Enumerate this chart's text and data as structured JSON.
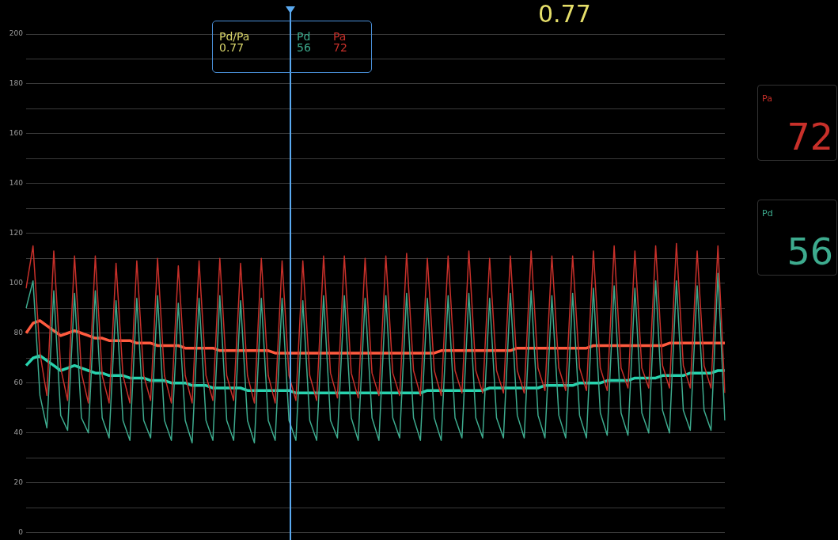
{
  "chart_data": {
    "type": "line",
    "categories": [
      null,
      null,
      null,
      null,
      null,
      null,
      null,
      null,
      null,
      null,
      null,
      null,
      null,
      null,
      null,
      null,
      null,
      null,
      null,
      null,
      null,
      null,
      null,
      null,
      null,
      null,
      null,
      null,
      null,
      null,
      null,
      null,
      null,
      null,
      null,
      null,
      null,
      null,
      null,
      null,
      null,
      null,
      null,
      null,
      null,
      null,
      null,
      null,
      null,
      null,
      null,
      null,
      null,
      null,
      null,
      null,
      null,
      null,
      null,
      null,
      null,
      null,
      null,
      null,
      null,
      null,
      null,
      null,
      null,
      null,
      null,
      null,
      null,
      null,
      null,
      null,
      null,
      null,
      null,
      null,
      null,
      null,
      null,
      null,
      null,
      null,
      null,
      null,
      null,
      null,
      null,
      null,
      null,
      null,
      null,
      null,
      null,
      null,
      null,
      null,
      null,
      null
    ],
    "series": [
      {
        "color": "#c8302a",
        "values": [
          98,
          115,
          72,
          55,
          113,
          66,
          53,
          111,
          64,
          52,
          111,
          63,
          52,
          108,
          63,
          52,
          109,
          63,
          53,
          110,
          63,
          52,
          107,
          63,
          52,
          109,
          63,
          53,
          110,
          63,
          53,
          108,
          63,
          52,
          110,
          63,
          52,
          109,
          63,
          53,
          109,
          63,
          53,
          111,
          64,
          54,
          111,
          64,
          54,
          110,
          64,
          55,
          111,
          64,
          55,
          112,
          65,
          55,
          110,
          65,
          55,
          111,
          65,
          56,
          113,
          65,
          56,
          110,
          65,
          56,
          111,
          65,
          56,
          113,
          66,
          57,
          111,
          66,
          57,
          111,
          66,
          57,
          113,
          66,
          57,
          115,
          66,
          58,
          113,
          66,
          58,
          115,
          67,
          58,
          116,
          67,
          58,
          113,
          67,
          58,
          115,
          56
        ]
      },
      {
        "color": "#3dab8e",
        "values": [
          90,
          101,
          55,
          42,
          97,
          47,
          41,
          96,
          46,
          40,
          97,
          46,
          38,
          93,
          45,
          37,
          94,
          45,
          38,
          95,
          45,
          37,
          92,
          45,
          36,
          94,
          45,
          37,
          95,
          45,
          37,
          93,
          45,
          36,
          94,
          45,
          37,
          94,
          45,
          37,
          93,
          45,
          37,
          95,
          45,
          38,
          95,
          46,
          37,
          94,
          46,
          37,
          95,
          46,
          38,
          96,
          46,
          37,
          94,
          46,
          37,
          95,
          46,
          38,
          96,
          46,
          38,
          94,
          46,
          38,
          96,
          47,
          38,
          97,
          47,
          38,
          95,
          47,
          38,
          96,
          47,
          38,
          98,
          48,
          39,
          99,
          48,
          39,
          98,
          48,
          40,
          101,
          49,
          40,
          101,
          49,
          41,
          99,
          49,
          41,
          104,
          45
        ]
      },
      {
        "color": "#ff5b3f",
        "values": [
          80,
          84,
          85,
          83,
          81,
          79,
          80,
          81,
          80,
          79,
          78,
          78,
          77,
          77,
          77,
          77,
          76,
          76,
          76,
          75,
          75,
          75,
          75,
          74,
          74,
          74,
          74,
          74,
          73,
          73,
          73,
          73,
          73,
          73,
          73,
          73,
          72,
          72,
          72,
          72,
          72,
          72,
          72,
          72,
          72,
          72,
          72,
          72,
          72,
          72,
          72,
          72,
          72,
          72,
          72,
          72,
          72,
          72,
          72,
          72,
          73,
          73,
          73,
          73,
          73,
          73,
          73,
          73,
          73,
          73,
          73,
          74,
          74,
          74,
          74,
          74,
          74,
          74,
          74,
          74,
          74,
          74,
          75,
          75,
          75,
          75,
          75,
          75,
          75,
          75,
          75,
          75,
          75,
          76,
          76,
          76,
          76,
          76,
          76,
          76,
          76,
          76
        ]
      },
      {
        "color": "#27d3ae",
        "values": [
          67,
          70,
          71,
          69,
          67,
          65,
          66,
          67,
          66,
          65,
          64,
          64,
          63,
          63,
          63,
          62,
          62,
          62,
          61,
          61,
          61,
          60,
          60,
          60,
          59,
          59,
          59,
          58,
          58,
          58,
          58,
          58,
          57,
          57,
          57,
          57,
          57,
          57,
          57,
          56,
          56,
          56,
          56,
          56,
          56,
          56,
          56,
          56,
          56,
          56,
          56,
          56,
          56,
          56,
          56,
          56,
          56,
          56,
          57,
          57,
          57,
          57,
          57,
          57,
          57,
          57,
          57,
          58,
          58,
          58,
          58,
          58,
          58,
          58,
          58,
          59,
          59,
          59,
          59,
          59,
          60,
          60,
          60,
          60,
          61,
          61,
          61,
          61,
          62,
          62,
          62,
          62,
          63,
          63,
          63,
          63,
          64,
          64,
          64,
          64,
          65,
          65
        ]
      }
    ],
    "ylim": [
      0,
      200
    ],
    "yticks": [
      0,
      {
        "value": 10,
        "label": null
      },
      20,
      {
        "value": 30,
        "label": null
      },
      40,
      {
        "value": 50,
        "label": null
      },
      60,
      {
        "value": 70,
        "label": null
      },
      80,
      {
        "value": 90,
        "label": null
      },
      100,
      {
        "value": 110,
        "label": null
      },
      120,
      {
        "value": 130,
        "label": null
      },
      140,
      {
        "value": 150,
        "label": null
      },
      160,
      {
        "value": 170,
        "label": null
      },
      180,
      {
        "value": 190,
        "label": null
      },
      200
    ],
    "grid": "y",
    "legend": false,
    "marker": "none",
    "tick_labels": "y",
    "annotations": [
      "0.77",
      "Pd/Pa",
      "0.77",
      "Pd",
      "56",
      "Pa",
      "72",
      "Pa",
      "72",
      "Pd",
      "56"
    ]
  }
}
